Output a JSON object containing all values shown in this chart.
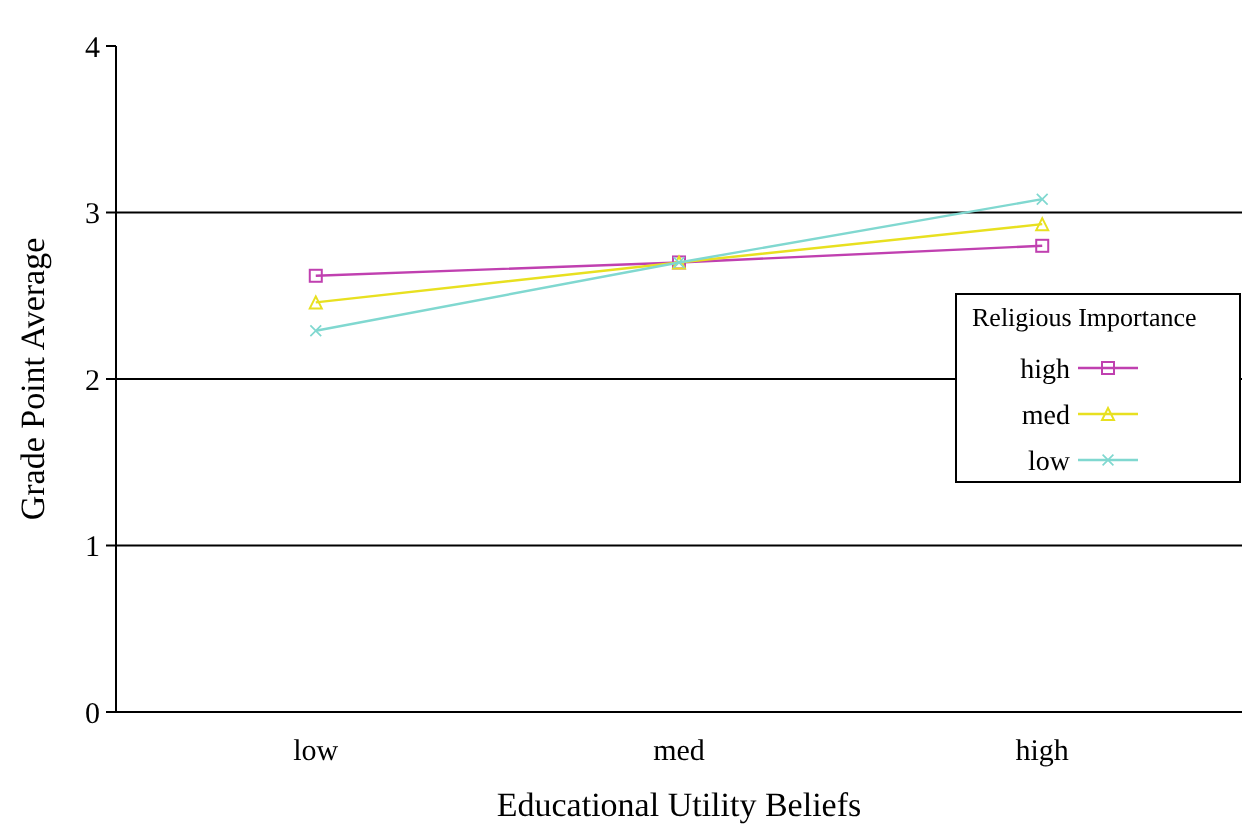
{
  "chart_data": {
    "type": "line",
    "xlabel": "Educational Utility Beliefs",
    "ylabel": "Grade Point Average",
    "legend_title": "Religious Importance",
    "categories": [
      "low",
      "med",
      "high"
    ],
    "series": [
      {
        "name": "high",
        "color": "#c040b0",
        "marker": "square",
        "values": [
          2.62,
          2.7,
          2.8
        ]
      },
      {
        "name": "med",
        "color": "#e8e020",
        "marker": "triangle",
        "values": [
          2.46,
          2.7,
          2.93
        ]
      },
      {
        "name": "low",
        "color": "#80d8d0",
        "marker": "cross",
        "values": [
          2.29,
          2.7,
          3.08
        ]
      }
    ],
    "ylim": [
      0,
      4
    ],
    "yticks": [
      0,
      1,
      2,
      3,
      4
    ],
    "grid": "y",
    "legend": "right"
  }
}
